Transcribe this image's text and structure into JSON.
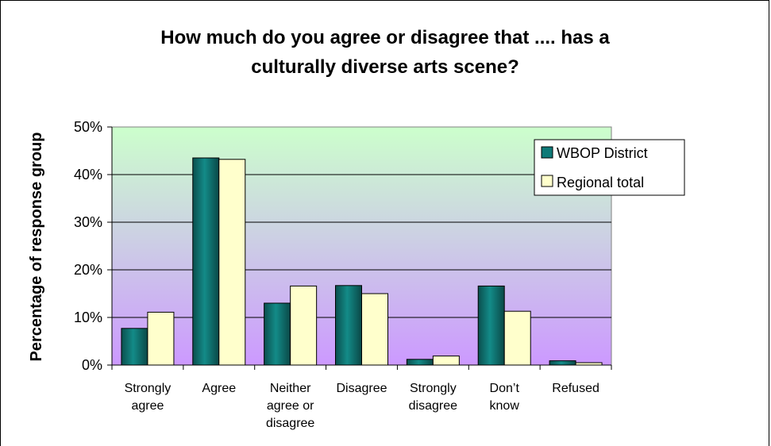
{
  "chart_data": {
    "type": "bar",
    "title_lines": [
      "How much do you agree or disagree that .... has a",
      "culturally diverse arts scene?"
    ],
    "xlabel": "",
    "ylabel": "Percentage of response group",
    "ylim": [
      0,
      50
    ],
    "yticks": [
      "0%",
      "10%",
      "20%",
      "30%",
      "40%",
      "50%"
    ],
    "grid": true,
    "legend_position": "top-right",
    "categories": [
      [
        "Strongly",
        "agree"
      ],
      [
        "Agree"
      ],
      [
        "Neither",
        "agree or",
        "disagree"
      ],
      [
        "Disagree"
      ],
      [
        "Strongly",
        "disagree"
      ],
      [
        "Don’t",
        "know"
      ],
      [
        "Refused"
      ]
    ],
    "series": [
      {
        "name": "WBOP District",
        "color": "#0f7a78",
        "values": [
          7.7,
          43.5,
          13.0,
          16.7,
          1.2,
          16.6,
          0.9
        ]
      },
      {
        "name": "Regional total",
        "color": "#ffffcc",
        "values": [
          11.1,
          43.2,
          16.6,
          15.0,
          1.9,
          11.3,
          0.5
        ]
      }
    ]
  }
}
